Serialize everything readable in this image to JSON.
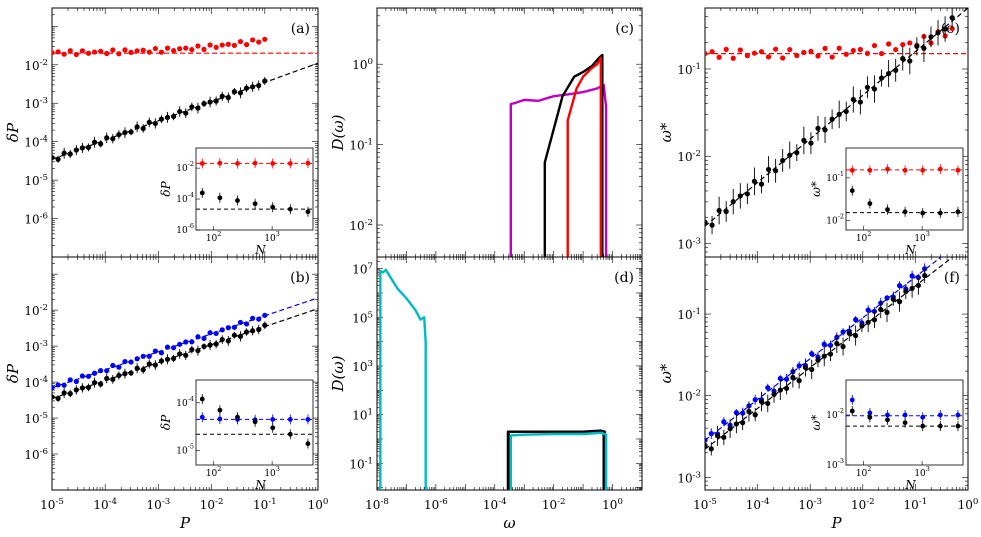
{
  "chart_data": [
    {
      "panel": "a",
      "label": "(a)",
      "type": "scatter",
      "xscale": "log",
      "yscale": "log",
      "xlim": [
        1e-05,
        1
      ],
      "ylim": [
        1e-07,
        0.3
      ],
      "xticks": [],
      "yticks": [
        "10^{-2}",
        "10^{-3}",
        "10^{-4}",
        "10^{-5}",
        "10^{-6}"
      ],
      "xlabel": "",
      "ylabel": "δP",
      "series": [
        {
          "color": "#ff0000",
          "kind": "markers",
          "errorbars": true,
          "x_range": [
            1e-05,
            0.1
          ],
          "y_func": "0.02*(1+3.1*P^0.4)",
          "rel_err": 0.05
        },
        {
          "color": "#ff0000",
          "kind": "dashed",
          "y": 0.02
        },
        {
          "color": "#000000",
          "kind": "markers",
          "errorbars": true,
          "x_range": [
            1e-05,
            0.1
          ],
          "y_func": "0.011*P^0.5",
          "rel_err": 0.35
        },
        {
          "color": "#000000",
          "kind": "dashed",
          "y_func": "0.011*P^0.5"
        }
      ],
      "inset": {
        "xlabel": "N",
        "ylabel": "δP",
        "xlim": [
          50,
          5000
        ],
        "ylim": [
          1e-06,
          0.2
        ],
        "xticks": [
          "10^{2}",
          "10^{3}"
        ],
        "yticks": [
          "10^{-2}",
          "10^{-4}",
          "10^{-6}"
        ],
        "series": [
          {
            "color": "#ff0000",
            "x": [
              64,
              128,
              256,
              512,
              1024,
              2048,
              4096
            ],
            "y": [
              0.02,
              0.021,
              0.02,
              0.021,
              0.02,
              0.02,
              0.021
            ]
          },
          {
            "color": "#000000",
            "x": [
              64,
              128,
              256,
              512,
              1024,
              2048,
              4096
            ],
            "y": [
              0.00025,
              0.00012,
              8e-05,
              5e-05,
              3e-05,
              2.2e-05,
              1.5e-05
            ]
          }
        ]
      }
    },
    {
      "panel": "b",
      "label": "(b)",
      "type": "scatter",
      "xscale": "log",
      "yscale": "log",
      "xlim": [
        1e-05,
        1
      ],
      "ylim": [
        1e-07,
        0.3
      ],
      "xticks": [
        "10^{-5}",
        "10^{-4}",
        "10^{-3}",
        "10^{-2}",
        "10^{-1}",
        "10^{0}"
      ],
      "yticks": [
        "10^{-2}",
        "10^{-3}",
        "10^{-4}",
        "10^{-5}",
        "10^{-6}"
      ],
      "xlabel": "P",
      "ylabel": "δP",
      "series": [
        {
          "color": "#0000ff",
          "kind": "markers",
          "errorbars": true,
          "x_range": [
            1e-05,
            0.1
          ],
          "y_func": "0.022*P^0.5",
          "rel_err": 0.1
        },
        {
          "color": "#0000ff",
          "kind": "dashed",
          "y_func": "0.022*P^0.5"
        },
        {
          "color": "#000000",
          "kind": "markers",
          "errorbars": true,
          "x_range": [
            1e-05,
            0.1
          ],
          "y_func": "0.011*P^0.5",
          "rel_err": 0.35
        },
        {
          "color": "#000000",
          "kind": "dashed",
          "y_func": "0.011*P^0.5"
        }
      ],
      "inset": {
        "xlabel": "N",
        "ylabel": "δP",
        "xlim": [
          50,
          5000
        ],
        "ylim": [
          5e-06,
          0.0003
        ],
        "xticks": [
          "10^{2}",
          "10^{3}"
        ],
        "yticks": [
          "10^{-4}",
          "10^{-5}"
        ],
        "series": [
          {
            "color": "#0000ff",
            "x": [
              64,
              128,
              256,
              512,
              1024,
              2048,
              4096
            ],
            "y": [
              5e-05,
              4.6e-05,
              4.5e-05,
              4.4e-05,
              4.5e-05,
              4.5e-05,
              4.5e-05
            ]
          },
          {
            "color": "#000000",
            "x": [
              64,
              128,
              256,
              512,
              1024,
              2048,
              4096
            ],
            "y": [
              0.00012,
              7e-05,
              5e-05,
              4e-05,
              3e-05,
              2.2e-05,
              1.4e-05
            ]
          }
        ]
      }
    },
    {
      "panel": "c",
      "label": "(c)",
      "type": "line",
      "xscale": "log",
      "yscale": "log",
      "xlim": [
        1e-08,
        10
      ],
      "ylim": [
        0.004,
        5
      ],
      "xticks": [],
      "yticks": [
        "10^{0}",
        "10^{-1}",
        "10^{-2}"
      ],
      "xlabel": "",
      "ylabel": "D(ω)",
      "series": [
        {
          "color": "#c000c0",
          "x": [
            0.00035,
            0.00035,
            0.0005,
            0.001,
            0.003,
            0.01,
            0.03,
            0.1,
            0.3,
            0.5,
            0.6,
            0.6
          ],
          "y": [
            0.004,
            0.32,
            0.33,
            0.36,
            0.35,
            0.4,
            0.42,
            0.45,
            0.5,
            0.55,
            0.3,
            0.004
          ]
        },
        {
          "color": "#000000",
          "x": [
            0.005,
            0.005,
            0.02,
            0.05,
            0.1,
            0.2,
            0.35,
            0.45,
            0.45
          ],
          "y": [
            0.004,
            0.06,
            0.4,
            0.7,
            0.8,
            0.95,
            1.2,
            1.3,
            0.004
          ]
        },
        {
          "color": "#ff0000",
          "x": [
            0.03,
            0.03,
            0.06,
            0.1,
            0.2,
            0.3,
            0.4,
            0.4
          ],
          "y": [
            0.004,
            0.2,
            0.5,
            0.7,
            0.9,
            1.0,
            1.2,
            0.004
          ]
        }
      ]
    },
    {
      "panel": "d",
      "label": "(d)",
      "type": "line",
      "xscale": "log",
      "yscale": "log",
      "xlim": [
        1e-08,
        10
      ],
      "ylim": [
        0.008,
        30000000.0
      ],
      "xticks": [
        "10^{-8}",
        "10^{-6}",
        "10^{-4}",
        "10^{-2}",
        "10^{0}"
      ],
      "yticks": [
        "10^{7}",
        "10^{5}",
        "10^{3}",
        "10^{1}",
        "10^{-1}"
      ],
      "xlabel": "ω",
      "ylabel": "D(ω)",
      "series": [
        {
          "color": "#00bbbb",
          "x": [
            1.3e-08,
            1.3e-08,
            1.6e-08,
            2e-08,
            3e-08,
            5e-08,
            1e-07,
            2e-07,
            3e-07,
            4e-07,
            4.5e-07,
            4.5e-07
          ],
          "y": [
            0.008,
            8000000.0,
            7000000.0,
            9000000.0,
            4000000.0,
            1500000.0,
            600000.0,
            200000.0,
            80000.0,
            100000.0,
            10000.0,
            0.008
          ]
        },
        {
          "color": "#0000ff",
          "x": [
            0.0003,
            0.0003,
            0.001,
            0.01,
            0.1,
            0.4,
            0.55,
            0.55
          ],
          "y": [
            0.008,
            2,
            2,
            2,
            2,
            2.2,
            2,
            0.008
          ]
        },
        {
          "color": "#000000",
          "x": [
            0.00028,
            0.00028,
            0.001,
            0.01,
            0.1,
            0.4,
            0.5,
            0.5
          ],
          "y": [
            0.008,
            2,
            2,
            2,
            2,
            2.1,
            2,
            0.008
          ]
        },
        {
          "color": "#00bbbb",
          "x": [
            0.00035,
            0.00035,
            0.001,
            0.01,
            0.1,
            0.4,
            0.6,
            0.6
          ],
          "y": [
            0.008,
            1.4,
            1.5,
            1.6,
            1.6,
            1.8,
            1.5,
            0.008
          ]
        }
      ]
    },
    {
      "panel": "e",
      "label": "(e)",
      "type": "scatter",
      "xscale": "log",
      "yscale": "log",
      "xlim": [
        1e-05,
        1
      ],
      "ylim": [
        0.0007,
        0.5
      ],
      "xticks": [],
      "yticks": [
        "10^{-1}",
        "10^{-2}",
        "10^{-3}"
      ],
      "xlabel": "",
      "ylabel": "ω*",
      "series": [
        {
          "color": "#ff0000",
          "kind": "markers",
          "errorbars": false,
          "x_range": [
            1e-05,
            0.5
          ],
          "y_func": "0.15+0.2*P^0.6",
          "rel_err": 0
        },
        {
          "color": "#ff0000",
          "kind": "dashed",
          "y": 0.15
        },
        {
          "color": "#000000",
          "kind": "markers",
          "errorbars": true,
          "x_range": [
            1e-05,
            0.5
          ],
          "y_func": "0.5*P^0.5",
          "rel_err": 0.4
        },
        {
          "color": "#000000",
          "kind": "dashed",
          "y_func": "0.5*P^0.5"
        }
      ],
      "inset": {
        "xlabel": "N",
        "ylabel": "ω*",
        "xlim": [
          50,
          5000
        ],
        "ylim": [
          0.006,
          0.5
        ],
        "xticks": [
          "10^{2}",
          "10^{3}"
        ],
        "yticks": [
          "10^{-1}",
          "10^{-2}"
        ],
        "series": [
          {
            "color": "#ff0000",
            "x": [
              64,
              128,
              256,
              512,
              1024,
              2048,
              4096
            ],
            "y": [
              0.15,
              0.15,
              0.16,
              0.15,
              0.15,
              0.16,
              0.15
            ]
          },
          {
            "color": "#000000",
            "x": [
              64,
              128,
              256,
              512,
              1024,
              2048,
              4096
            ],
            "y": [
              0.05,
              0.025,
              0.018,
              0.016,
              0.015,
              0.015,
              0.016
            ]
          }
        ]
      }
    },
    {
      "panel": "f",
      "label": "(f)",
      "type": "scatter",
      "xscale": "log",
      "yscale": "log",
      "xlim": [
        1e-05,
        1
      ],
      "ylim": [
        0.0007,
        0.5
      ],
      "xticks": [
        "10^{-5}",
        "10^{-4}",
        "10^{-3}",
        "10^{-2}",
        "10^{-1}",
        "10^{0}"
      ],
      "yticks": [
        "10^{-1}",
        "10^{-2}",
        "10^{-3}"
      ],
      "xlabel": "P",
      "ylabel": "ω*",
      "series": [
        {
          "color": "#0000ff",
          "kind": "markers",
          "errorbars": true,
          "x_range": [
            1e-05,
            0.15
          ],
          "y_func": "0.9*P^0.5",
          "rel_err": 0.15
        },
        {
          "color": "#0000ff",
          "kind": "dashed",
          "y_func": "0.9*P^0.5"
        },
        {
          "color": "#000000",
          "kind": "markers",
          "errorbars": true,
          "x_range": [
            1e-05,
            0.15
          ],
          "y_func": "0.7*P^0.5",
          "rel_err": 0.3
        },
        {
          "color": "#000000",
          "kind": "dashed",
          "y_func": "0.7*P^0.5"
        }
      ],
      "inset": {
        "xlabel": "N",
        "ylabel": "ω*",
        "xlim": [
          50,
          5000
        ],
        "ylim": [
          0.001,
          0.05
        ],
        "xticks": [
          "10^{2}",
          "10^{3}"
        ],
        "yticks": [
          "10^{-2}",
          "10^{-3}"
        ],
        "series": [
          {
            "color": "#0000ff",
            "x": [
              64,
              128,
              256,
              512,
              1024,
              2048,
              4096
            ],
            "y": [
              0.02,
              0.011,
              0.01,
              0.01,
              0.009,
              0.01,
              0.01
            ]
          },
          {
            "color": "#000000",
            "x": [
              64,
              128,
              256,
              512,
              1024,
              2048,
              4096
            ],
            "y": [
              0.012,
              0.009,
              0.008,
              0.007,
              0.006,
              0.006,
              0.006
            ]
          }
        ]
      }
    }
  ]
}
